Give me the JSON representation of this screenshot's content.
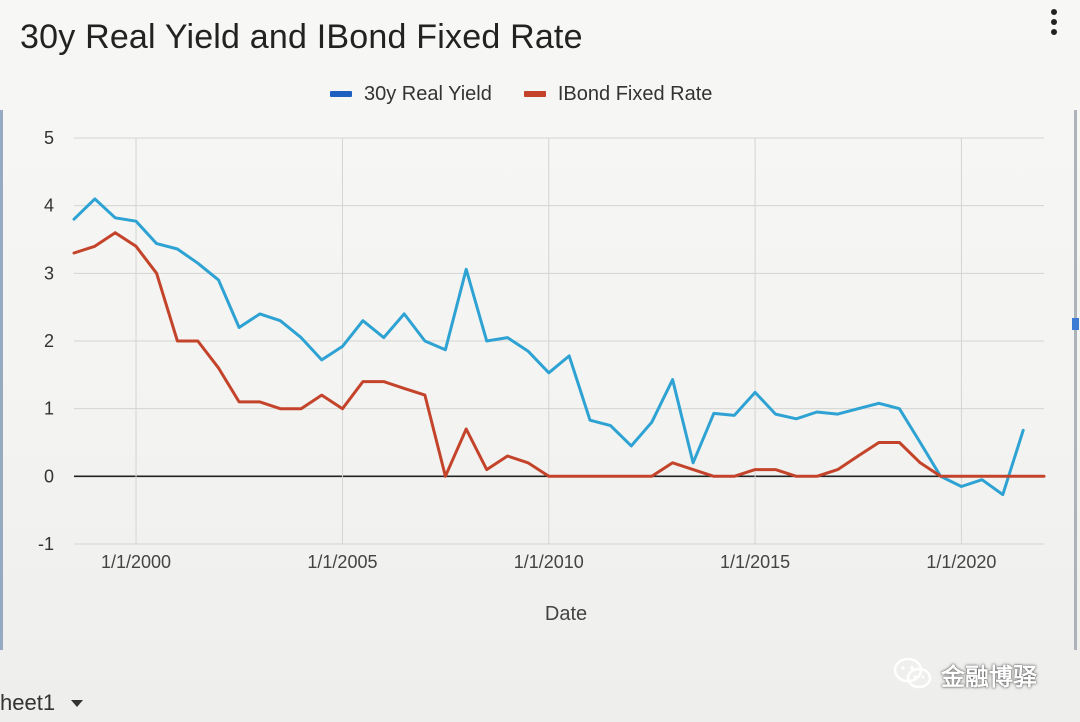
{
  "chart_data": {
    "type": "line",
    "title": "30y Real Yield and IBond Fixed Rate",
    "xlabel": "Date",
    "ylabel": "",
    "ylim": [
      -1,
      5
    ],
    "yticks": [
      5,
      4,
      3,
      2,
      1,
      0,
      -1
    ],
    "xlim": [
      "1998-07-01",
      "2022-01-01"
    ],
    "xticks": [
      {
        "date": "2000-01-01",
        "label": "1/1/2000"
      },
      {
        "date": "2005-01-01",
        "label": "1/1/2005"
      },
      {
        "date": "2010-01-01",
        "label": "1/1/2010"
      },
      {
        "date": "2015-01-01",
        "label": "1/1/2015"
      },
      {
        "date": "2020-01-01",
        "label": "1/1/2020"
      }
    ],
    "grid": true,
    "legend_position": "top",
    "x": [
      "1998-07-01",
      "1999-01-01",
      "1999-07-01",
      "2000-01-01",
      "2000-07-01",
      "2001-01-01",
      "2001-07-01",
      "2002-01-01",
      "2002-07-01",
      "2003-01-01",
      "2003-07-01",
      "2004-01-01",
      "2004-07-01",
      "2005-01-01",
      "2005-07-01",
      "2006-01-01",
      "2006-07-01",
      "2007-01-01",
      "2007-07-01",
      "2008-01-01",
      "2008-07-01",
      "2009-01-01",
      "2009-07-01",
      "2010-01-01",
      "2010-07-01",
      "2011-01-01",
      "2011-07-01",
      "2012-01-01",
      "2012-07-01",
      "2013-01-01",
      "2013-07-01",
      "2014-01-01",
      "2014-07-01",
      "2015-01-01",
      "2015-07-01",
      "2016-01-01",
      "2016-07-01",
      "2017-01-01",
      "2017-07-01",
      "2018-01-01",
      "2018-07-01",
      "2019-01-01",
      "2019-07-01",
      "2020-01-01",
      "2020-07-01",
      "2021-01-01",
      "2021-07-01",
      "2022-01-01"
    ],
    "series": [
      {
        "name": "30y Real Yield",
        "color": "#2ea3d3",
        "legend_color": "#1f5fbf",
        "values": [
          3.8,
          4.1,
          3.82,
          3.77,
          3.44,
          3.36,
          3.15,
          2.9,
          2.2,
          2.4,
          2.3,
          2.05,
          1.72,
          1.92,
          2.3,
          2.05,
          2.4,
          2.0,
          1.87,
          3.06,
          2.0,
          2.05,
          1.85,
          1.53,
          1.78,
          0.83,
          0.75,
          0.45,
          0.8,
          1.43,
          0.2,
          0.93,
          0.9,
          1.24,
          0.92,
          0.85,
          0.95,
          0.92,
          1.0,
          1.08,
          1.0,
          0.5,
          0.0,
          -0.15,
          -0.05,
          -0.27,
          0.68,
          null
        ]
      },
      {
        "name": "IBond Fixed Rate",
        "color": "#c4442b",
        "legend_color": "#c4442b",
        "values": [
          3.3,
          3.4,
          3.6,
          3.4,
          3.0,
          2.0,
          2.0,
          1.6,
          1.1,
          1.1,
          1.0,
          1.0,
          1.2,
          1.0,
          1.4,
          1.4,
          1.3,
          1.2,
          0.0,
          0.7,
          0.1,
          0.3,
          0.2,
          0.0,
          0.0,
          0.0,
          0.0,
          0.0,
          0.0,
          0.2,
          0.1,
          0.0,
          0.0,
          0.1,
          0.1,
          0.0,
          0.0,
          0.1,
          0.3,
          0.5,
          0.5,
          0.2,
          0.0,
          0.0,
          0.0,
          0.0,
          0.0,
          0.0
        ]
      }
    ]
  },
  "sheet_tab": {
    "label": "heet1"
  },
  "watermark": {
    "text": "金融博驿"
  }
}
